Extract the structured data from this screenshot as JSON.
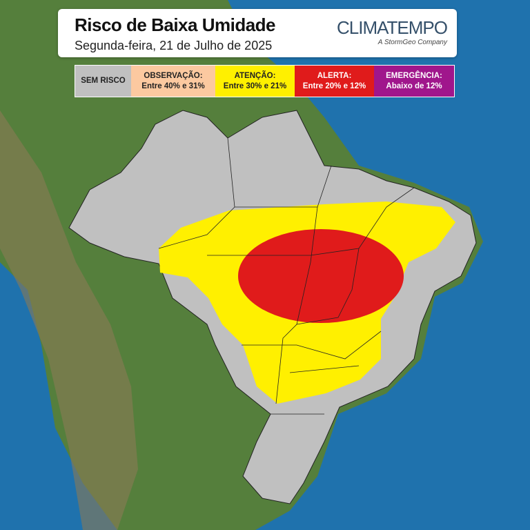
{
  "header": {
    "title": "Risco de Baixa Umidade",
    "subtitle": "Segunda-feira, 21 de Julho de 2025"
  },
  "logo": {
    "name": "CLIMATEMPO",
    "tagline": "A StormGeo Company"
  },
  "legend": [
    {
      "label": "SEM RISCO",
      "range": "",
      "color": "#c0c0c0",
      "text_color": "#222222"
    },
    {
      "label": "OBSERVAÇÃO:",
      "range": "Entre 40% e 31%",
      "color": "#fcc9a0",
      "text_color": "#222222"
    },
    {
      "label": "ATENÇÃO:",
      "range": "Entre 30% e 21%",
      "color": "#fff000",
      "text_color": "#222222"
    },
    {
      "label": "ALERTA:",
      "range": "Entre 20% e 12%",
      "color": "#e01b1b",
      "text_color": "#ffffff"
    },
    {
      "label": "EMERGÊNCIA:",
      "range": "Abaixo de 12%",
      "color": "#a0168c",
      "text_color": "#ffffff"
    }
  ],
  "map": {
    "ocean_color": "#1d6fa8",
    "land_color": "#4f7d3a",
    "no_risk_color": "#c0c0c0",
    "attention_color": "#fff000",
    "alert_color": "#e01b1b"
  }
}
